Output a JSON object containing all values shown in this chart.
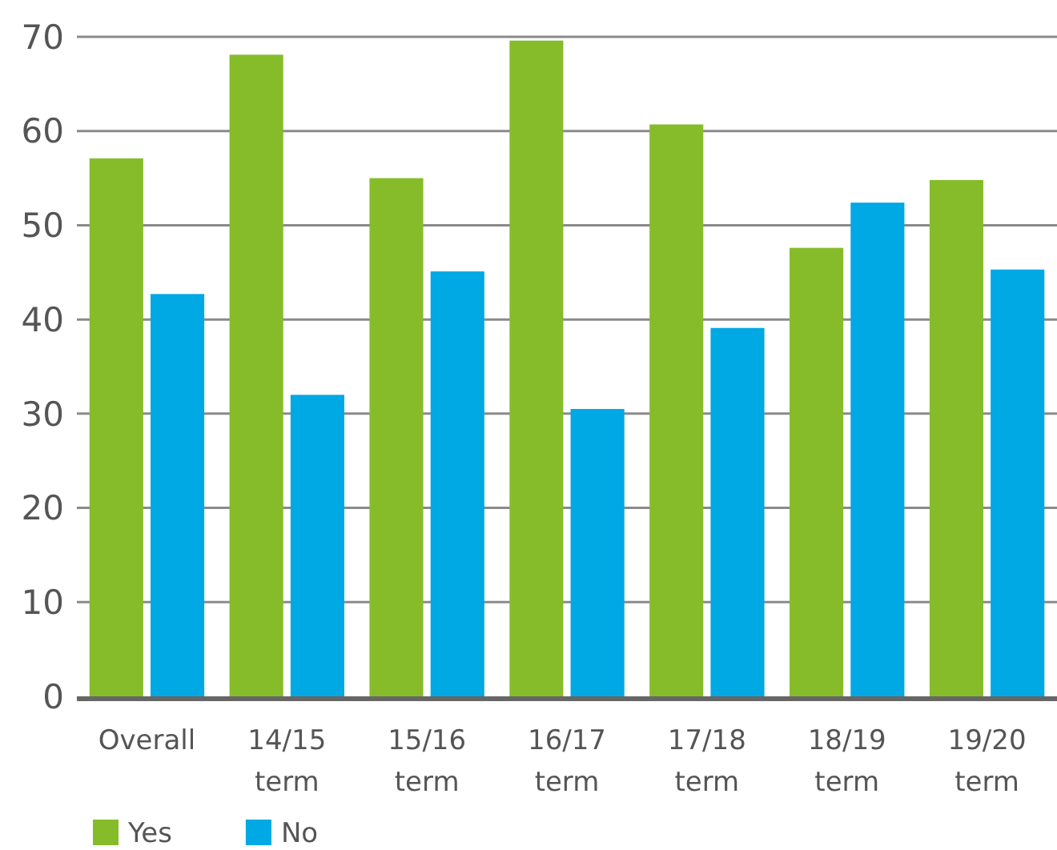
{
  "chart_data": {
    "type": "bar",
    "categories": [
      "Overall",
      "14/15 term",
      "15/16 term",
      "16/17 term",
      "17/18 term",
      "18/19 term",
      "19/20 term"
    ],
    "series": [
      {
        "name": "Yes",
        "color": "#86bc29",
        "values": [
          57.1,
          68.1,
          55.0,
          69.6,
          60.7,
          47.6,
          54.8
        ]
      },
      {
        "name": "No",
        "color": "#00a8e4",
        "values": [
          42.7,
          32.0,
          45.1,
          30.5,
          39.1,
          52.4,
          45.3
        ]
      }
    ],
    "ylim": [
      0,
      70
    ],
    "yticks": [
      0,
      10,
      20,
      30,
      40,
      50,
      60,
      70
    ],
    "grid": "y",
    "legend": "bottom left"
  }
}
